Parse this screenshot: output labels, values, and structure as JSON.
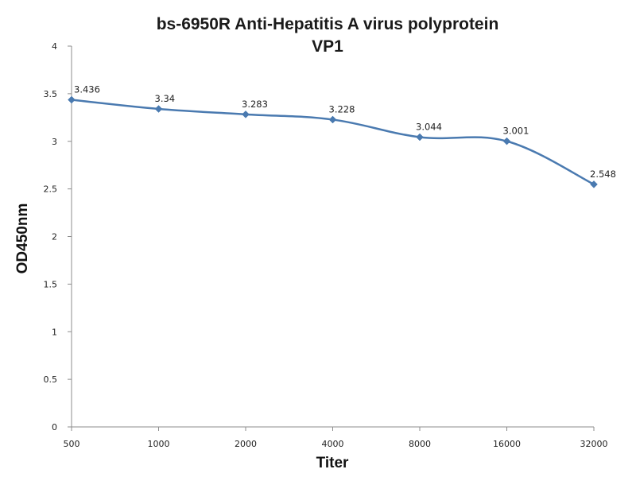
{
  "chart_data": {
    "type": "line",
    "title": "bs-6950R Anti-Hepatitis A virus polyprotein",
    "subtitle": "VP1",
    "xlabel": "Titer",
    "ylabel": "OD450nm",
    "categories": [
      "500",
      "1000",
      "2000",
      "4000",
      "8000",
      "16000",
      "32000"
    ],
    "series": [
      {
        "values": [
          3.436,
          3.34,
          3.283,
          3.228,
          3.044,
          3.001,
          2.548
        ],
        "labels": [
          "3.436",
          "3.34",
          "3.283",
          "3.228",
          "3.044",
          "3.001",
          "2.548"
        ],
        "color": "#4a7ab0"
      }
    ],
    "ylim": [
      0,
      4
    ],
    "yticks": [
      "0",
      "0.5",
      "1",
      "1.5",
      "2",
      "2.5",
      "3",
      "3.5",
      "4"
    ],
    "grid": false,
    "legend": "none"
  }
}
